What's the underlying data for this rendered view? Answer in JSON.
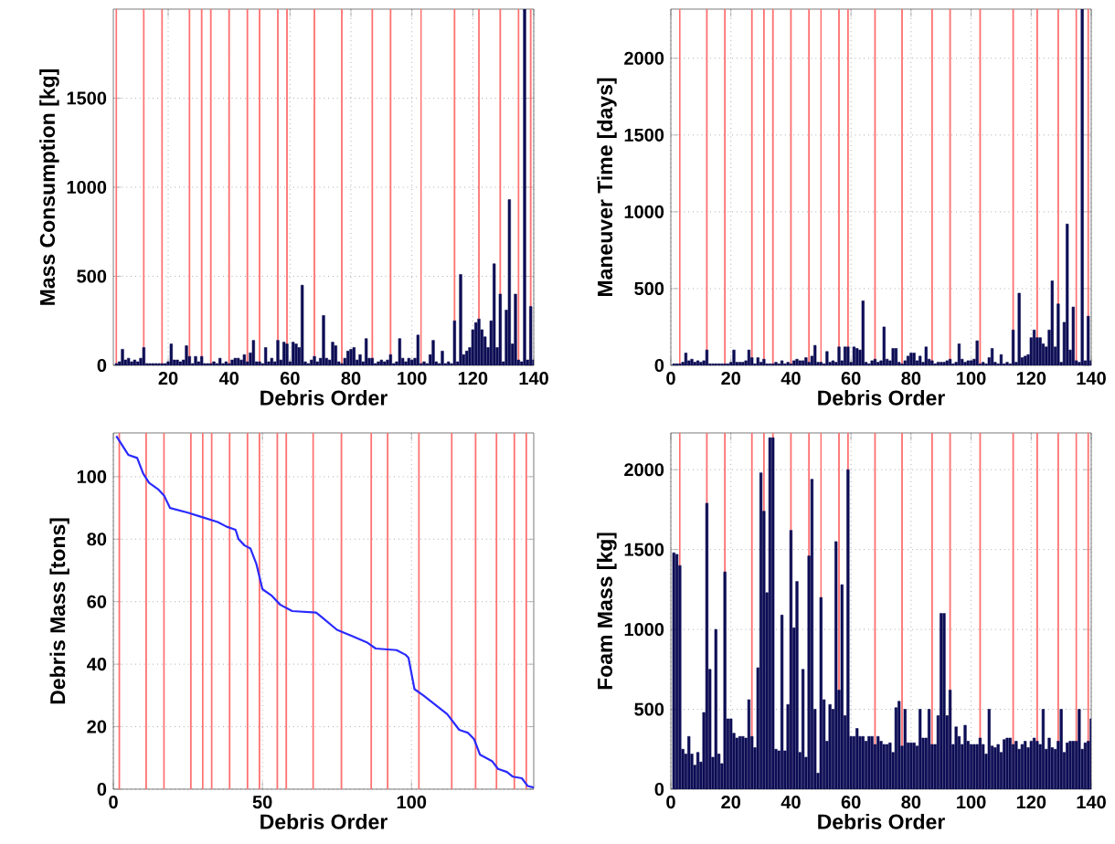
{
  "chart_data": [
    {
      "type": "bar",
      "xlabel": "Debris Order",
      "ylabel": "Mass Consumption [kg]",
      "xlim": [
        2,
        140
      ],
      "ylim": [
        0,
        2000
      ],
      "xticks": [
        20,
        40,
        60,
        80,
        100,
        120,
        140
      ],
      "yticks": [
        0,
        500,
        1000,
        1500
      ],
      "grid": true,
      "color": "#0d0d55",
      "x": [
        null,
        null,
        3,
        4,
        5,
        6,
        7,
        8,
        9,
        10,
        11,
        12,
        13,
        14,
        15,
        16,
        17,
        18,
        19,
        20,
        21,
        22,
        23,
        24,
        25,
        26,
        27,
        28,
        29,
        30,
        31,
        32,
        33,
        34,
        35,
        36,
        37,
        38,
        39,
        40,
        41,
        42,
        43,
        44,
        45,
        46,
        47,
        48,
        49,
        50,
        51,
        52,
        53,
        54,
        55,
        56,
        57,
        58,
        59,
        60,
        61,
        62,
        63,
        64,
        65,
        66,
        67,
        68,
        69,
        70,
        71,
        72,
        73,
        74,
        75,
        76,
        77,
        78,
        79,
        80,
        81,
        82,
        83,
        84,
        85,
        86,
        87,
        88,
        89,
        90,
        91,
        92,
        93,
        94,
        95,
        96,
        97,
        98,
        99,
        100,
        101,
        102,
        103,
        104,
        105,
        106,
        107,
        108,
        109,
        110,
        111,
        112,
        113,
        114,
        115,
        116,
        117,
        118,
        119,
        120,
        121,
        122,
        123,
        124,
        125,
        126,
        127,
        128,
        129,
        130,
        131,
        132,
        133,
        134,
        135,
        136,
        137,
        138,
        139,
        140
      ],
      "values": [
        null,
        null,
        10,
        20,
        90,
        30,
        40,
        20,
        30,
        20,
        40,
        100,
        10,
        10,
        10,
        10,
        10,
        10,
        10,
        20,
        120,
        30,
        30,
        20,
        30,
        110,
        50,
        10,
        50,
        20,
        50,
        10,
        10,
        10,
        20,
        10,
        40,
        10,
        20,
        10,
        30,
        40,
        40,
        30,
        60,
        20,
        70,
        140,
        20,
        20,
        10,
        100,
        20,
        40,
        20,
        140,
        30,
        130,
        120,
        20,
        130,
        120,
        100,
        450,
        20,
        10,
        30,
        50,
        20,
        40,
        280,
        40,
        30,
        130,
        110,
        20,
        10,
        40,
        80,
        90,
        100,
        30,
        60,
        20,
        150,
        40,
        40,
        10,
        20,
        30,
        20,
        30,
        60,
        10,
        20,
        150,
        40,
        20,
        40,
        30,
        40,
        170,
        10,
        20,
        10,
        60,
        140,
        20,
        10,
        80,
        10,
        20,
        10,
        250,
        20,
        510,
        60,
        80,
        100,
        200,
        240,
        260,
        200,
        160,
        100,
        250,
        570,
        100,
        400,
        20,
        310,
        930,
        120,
        400,
        30,
        20,
        2000,
        30,
        330,
        30
      ],
      "ref_lines": [
        {
          "axis": "x",
          "value": 3,
          "color": "#ff7070"
        },
        {
          "axis": "x",
          "value": 12,
          "color": "#ff7070"
        },
        {
          "axis": "x",
          "value": 18,
          "color": "#ff7070"
        },
        {
          "axis": "x",
          "value": 27,
          "color": "#ff7070"
        },
        {
          "axis": "x",
          "value": 31,
          "color": "#ff7070"
        },
        {
          "axis": "x",
          "value": 34,
          "color": "#ff7070"
        },
        {
          "axis": "x",
          "value": 40,
          "color": "#ff7070"
        },
        {
          "axis": "x",
          "value": 46,
          "color": "#ff7070"
        },
        {
          "axis": "x",
          "value": 50,
          "color": "#ff7070"
        },
        {
          "axis": "x",
          "value": 56,
          "color": "#ff7070"
        },
        {
          "axis": "x",
          "value": 59,
          "color": "#ff7070"
        },
        {
          "axis": "x",
          "value": 68,
          "color": "#ff7070"
        },
        {
          "axis": "x",
          "value": 77,
          "color": "#ff7070"
        },
        {
          "axis": "x",
          "value": 87,
          "color": "#ff7070"
        },
        {
          "axis": "x",
          "value": 93,
          "color": "#ff7070"
        },
        {
          "axis": "x",
          "value": 103,
          "color": "#ff7070"
        },
        {
          "axis": "x",
          "value": 114,
          "color": "#ff7070"
        },
        {
          "axis": "x",
          "value": 122,
          "color": "#ff7070"
        },
        {
          "axis": "x",
          "value": 129,
          "color": "#ff7070"
        },
        {
          "axis": "x",
          "value": 135,
          "color": "#ff7070"
        },
        {
          "axis": "x",
          "value": 139,
          "color": "#ff7070"
        }
      ]
    },
    {
      "type": "bar",
      "xlabel": "Debris Order",
      "ylabel": "Maneuver Time [days]",
      "xlim": [
        0,
        140
      ],
      "ylim": [
        0,
        2320
      ],
      "xticks": [
        0,
        20,
        40,
        60,
        80,
        100,
        120,
        140
      ],
      "yticks": [
        0,
        500,
        1000,
        1500,
        2000
      ],
      "grid": true,
      "color": "#0d0d55",
      "x": [
        1,
        2,
        3,
        4,
        5,
        6,
        7,
        8,
        9,
        10,
        11,
        12,
        13,
        14,
        15,
        16,
        17,
        18,
        19,
        20,
        21,
        22,
        23,
        24,
        25,
        26,
        27,
        28,
        29,
        30,
        31,
        32,
        33,
        34,
        35,
        36,
        37,
        38,
        39,
        40,
        41,
        42,
        43,
        44,
        45,
        46,
        47,
        48,
        49,
        50,
        51,
        52,
        53,
        54,
        55,
        56,
        57,
        58,
        59,
        60,
        61,
        62,
        63,
        64,
        65,
        66,
        67,
        68,
        69,
        70,
        71,
        72,
        73,
        74,
        75,
        76,
        77,
        78,
        79,
        80,
        81,
        82,
        83,
        84,
        85,
        86,
        87,
        88,
        89,
        90,
        91,
        92,
        93,
        94,
        95,
        96,
        97,
        98,
        99,
        100,
        101,
        102,
        103,
        104,
        105,
        106,
        107,
        108,
        109,
        110,
        111,
        112,
        113,
        114,
        115,
        116,
        117,
        118,
        119,
        120,
        121,
        122,
        123,
        124,
        125,
        126,
        127,
        128,
        129,
        130,
        131,
        132,
        133,
        134,
        135,
        136,
        137,
        138,
        139,
        140
      ],
      "values": [
        10,
        10,
        10,
        20,
        80,
        30,
        40,
        20,
        30,
        20,
        30,
        100,
        10,
        10,
        10,
        10,
        10,
        10,
        10,
        20,
        100,
        20,
        20,
        20,
        30,
        100,
        50,
        10,
        50,
        20,
        40,
        10,
        10,
        10,
        20,
        10,
        30,
        10,
        20,
        10,
        30,
        40,
        30,
        30,
        50,
        20,
        60,
        130,
        20,
        20,
        10,
        90,
        20,
        30,
        20,
        120,
        30,
        120,
        120,
        20,
        120,
        110,
        100,
        420,
        20,
        10,
        30,
        40,
        20,
        30,
        250,
        40,
        30,
        110,
        110,
        20,
        10,
        30,
        60,
        80,
        80,
        30,
        60,
        20,
        120,
        40,
        30,
        10,
        20,
        20,
        20,
        30,
        40,
        10,
        20,
        140,
        40,
        20,
        30,
        30,
        40,
        160,
        10,
        20,
        10,
        50,
        110,
        20,
        10,
        70,
        10,
        20,
        10,
        230,
        20,
        470,
        50,
        60,
        70,
        180,
        230,
        180,
        180,
        140,
        120,
        230,
        550,
        120,
        400,
        20,
        280,
        920,
        100,
        380,
        30,
        20,
        2320,
        30,
        320,
        30
      ],
      "ref_lines": [
        {
          "axis": "x",
          "value": 3,
          "color": "#ff7070"
        },
        {
          "axis": "x",
          "value": 12,
          "color": "#ff7070"
        },
        {
          "axis": "x",
          "value": 18,
          "color": "#ff7070"
        },
        {
          "axis": "x",
          "value": 27,
          "color": "#ff7070"
        },
        {
          "axis": "x",
          "value": 31,
          "color": "#ff7070"
        },
        {
          "axis": "x",
          "value": 34,
          "color": "#ff7070"
        },
        {
          "axis": "x",
          "value": 40,
          "color": "#ff7070"
        },
        {
          "axis": "x",
          "value": 46,
          "color": "#ff7070"
        },
        {
          "axis": "x",
          "value": 50,
          "color": "#ff7070"
        },
        {
          "axis": "x",
          "value": 56,
          "color": "#ff7070"
        },
        {
          "axis": "x",
          "value": 59,
          "color": "#ff7070"
        },
        {
          "axis": "x",
          "value": 68,
          "color": "#ff7070"
        },
        {
          "axis": "x",
          "value": 77,
          "color": "#ff7070"
        },
        {
          "axis": "x",
          "value": 87,
          "color": "#ff7070"
        },
        {
          "axis": "x",
          "value": 93,
          "color": "#ff7070"
        },
        {
          "axis": "x",
          "value": 103,
          "color": "#ff7070"
        },
        {
          "axis": "x",
          "value": 114,
          "color": "#ff7070"
        },
        {
          "axis": "x",
          "value": 122,
          "color": "#ff7070"
        },
        {
          "axis": "x",
          "value": 129,
          "color": "#ff7070"
        },
        {
          "axis": "x",
          "value": 135,
          "color": "#ff7070"
        },
        {
          "axis": "x",
          "value": 139,
          "color": "#ff7070"
        }
      ]
    },
    {
      "type": "line",
      "xlabel": "Debris Order",
      "ylabel": "Debris Mass [tons]",
      "xlim": [
        0,
        141
      ],
      "ylim": [
        0,
        114
      ],
      "xticks": [
        0,
        50,
        100
      ],
      "yticks": [
        0,
        20,
        40,
        60,
        80,
        100
      ],
      "grid": true,
      "color": "#2a2aff",
      "marker": "none",
      "line_style": "solid",
      "x": [
        1,
        3,
        5,
        8,
        10,
        12,
        15,
        17,
        19,
        25,
        30,
        35,
        38,
        41,
        42,
        44,
        46,
        48,
        50,
        53,
        56,
        60,
        68,
        70,
        75,
        80,
        85,
        88,
        95,
        98,
        99,
        101,
        104,
        108,
        112,
        116,
        119,
        121,
        123,
        125,
        127,
        129,
        132,
        134,
        137,
        139,
        141
      ],
      "values": [
        113,
        110,
        107,
        106,
        101,
        98,
        96,
        94,
        90,
        88.5,
        87,
        85.5,
        84,
        83,
        80,
        78,
        77,
        72,
        64,
        62,
        59,
        57,
        56.5,
        55,
        51,
        49,
        47,
        45,
        44.5,
        43,
        42,
        32,
        30,
        27,
        24,
        19,
        18,
        16,
        11,
        10,
        9,
        6.5,
        5.5,
        4,
        3.5,
        1,
        0.5
      ],
      "ref_lines": [
        {
          "axis": "x",
          "value": 2,
          "color": "#ff7070"
        },
        {
          "axis": "x",
          "value": 11,
          "color": "#ff7070"
        },
        {
          "axis": "x",
          "value": 17,
          "color": "#ff7070"
        },
        {
          "axis": "x",
          "value": 26,
          "color": "#ff7070"
        },
        {
          "axis": "x",
          "value": 30,
          "color": "#ff7070"
        },
        {
          "axis": "x",
          "value": 33,
          "color": "#ff7070"
        },
        {
          "axis": "x",
          "value": 39,
          "color": "#ff7070"
        },
        {
          "axis": "x",
          "value": 45,
          "color": "#ff7070"
        },
        {
          "axis": "x",
          "value": 49,
          "color": "#ff7070"
        },
        {
          "axis": "x",
          "value": 55,
          "color": "#ff7070"
        },
        {
          "axis": "x",
          "value": 58,
          "color": "#ff7070"
        },
        {
          "axis": "x",
          "value": 67,
          "color": "#ff7070"
        },
        {
          "axis": "x",
          "value": 76.5,
          "color": "#ff7070"
        },
        {
          "axis": "x",
          "value": 86.5,
          "color": "#ff7070"
        },
        {
          "axis": "x",
          "value": 92,
          "color": "#ff7070"
        },
        {
          "axis": "x",
          "value": 102.5,
          "color": "#ff7070"
        },
        {
          "axis": "x",
          "value": 113.5,
          "color": "#ff7070"
        },
        {
          "axis": "x",
          "value": 121.5,
          "color": "#ff7070"
        },
        {
          "axis": "x",
          "value": 128.5,
          "color": "#ff7070"
        },
        {
          "axis": "x",
          "value": 134.5,
          "color": "#ff7070"
        },
        {
          "axis": "x",
          "value": 138.5,
          "color": "#ff7070"
        }
      ]
    },
    {
      "type": "bar",
      "xlabel": "Debris Order",
      "ylabel": "Foam Mass [kg]",
      "xlim": [
        0,
        140
      ],
      "ylim": [
        0,
        2230
      ],
      "xticks": [
        0,
        20,
        40,
        60,
        80,
        100,
        120,
        140
      ],
      "yticks": [
        0,
        500,
        1000,
        1500,
        2000
      ],
      "grid": true,
      "color": "#0d0d55",
      "x": [
        1,
        2,
        3,
        4,
        5,
        6,
        7,
        8,
        9,
        10,
        11,
        12,
        13,
        14,
        15,
        16,
        17,
        18,
        19,
        20,
        21,
        22,
        23,
        24,
        25,
        26,
        27,
        28,
        29,
        30,
        31,
        32,
        33,
        34,
        35,
        36,
        37,
        38,
        39,
        40,
        41,
        42,
        43,
        44,
        45,
        46,
        47,
        48,
        49,
        50,
        51,
        52,
        53,
        54,
        55,
        56,
        57,
        58,
        59,
        60,
        61,
        62,
        63,
        64,
        65,
        66,
        67,
        68,
        69,
        70,
        71,
        72,
        73,
        74,
        75,
        76,
        77,
        78,
        79,
        80,
        81,
        82,
        83,
        84,
        85,
        86,
        87,
        88,
        89,
        90,
        91,
        92,
        93,
        94,
        95,
        96,
        97,
        98,
        99,
        100,
        101,
        102,
        103,
        104,
        105,
        106,
        107,
        108,
        109,
        110,
        111,
        112,
        113,
        114,
        115,
        116,
        117,
        118,
        119,
        120,
        121,
        122,
        123,
        124,
        125,
        126,
        127,
        128,
        129,
        130,
        131,
        132,
        133,
        134,
        135,
        136,
        137,
        138,
        139,
        140
      ],
      "values": [
        1480,
        1470,
        1400,
        250,
        220,
        330,
        220,
        150,
        230,
        170,
        480,
        1790,
        750,
        200,
        1000,
        220,
        160,
        1360,
        440,
        440,
        350,
        320,
        330,
        330,
        320,
        560,
        330,
        260,
        760,
        1980,
        1740,
        1230,
        2200,
        2200,
        250,
        240,
        1090,
        240,
        530,
        1620,
        1010,
        1300,
        230,
        750,
        200,
        1460,
        1940,
        500,
        100,
        1200,
        560,
        300,
        530,
        500,
        1550,
        620,
        1280,
        460,
        2000,
        330,
        330,
        380,
        330,
        330,
        300,
        330,
        330,
        280,
        330,
        300,
        280,
        280,
        290,
        230,
        510,
        550,
        270,
        500,
        290,
        290,
        290,
        270,
        500,
        320,
        320,
        500,
        280,
        280,
        460,
        1100,
        1100,
        460,
        620,
        280,
        390,
        330,
        280,
        400,
        300,
        280,
        280,
        280,
        320,
        280,
        220,
        500,
        270,
        260,
        280,
        230,
        310,
        320,
        320,
        280,
        300,
        250,
        280,
        300,
        260,
        300,
        320,
        300,
        280,
        500,
        250,
        320,
        260,
        250,
        300,
        500,
        230,
        290,
        300,
        300,
        300,
        500,
        250,
        290,
        300,
        440
      ],
      "ref_lines": [
        {
          "axis": "x",
          "value": 3,
          "color": "#ff7070"
        },
        {
          "axis": "x",
          "value": 12,
          "color": "#ff7070"
        },
        {
          "axis": "x",
          "value": 18,
          "color": "#ff7070"
        },
        {
          "axis": "x",
          "value": 27,
          "color": "#ff7070"
        },
        {
          "axis": "x",
          "value": 31,
          "color": "#ff7070"
        },
        {
          "axis": "x",
          "value": 34,
          "color": "#ff7070"
        },
        {
          "axis": "x",
          "value": 40,
          "color": "#ff7070"
        },
        {
          "axis": "x",
          "value": 46,
          "color": "#ff7070"
        },
        {
          "axis": "x",
          "value": 50,
          "color": "#ff7070"
        },
        {
          "axis": "x",
          "value": 56,
          "color": "#ff7070"
        },
        {
          "axis": "x",
          "value": 59,
          "color": "#ff7070"
        },
        {
          "axis": "x",
          "value": 68,
          "color": "#ff7070"
        },
        {
          "axis": "x",
          "value": 77,
          "color": "#ff7070"
        },
        {
          "axis": "x",
          "value": 87,
          "color": "#ff7070"
        },
        {
          "axis": "x",
          "value": 93,
          "color": "#ff7070"
        },
        {
          "axis": "x",
          "value": 103,
          "color": "#ff7070"
        },
        {
          "axis": "x",
          "value": 114,
          "color": "#ff7070"
        },
        {
          "axis": "x",
          "value": 122,
          "color": "#ff7070"
        },
        {
          "axis": "x",
          "value": 129,
          "color": "#ff7070"
        },
        {
          "axis": "x",
          "value": 135,
          "color": "#ff7070"
        },
        {
          "axis": "x",
          "value": 139,
          "color": "#ff7070"
        }
      ]
    }
  ]
}
